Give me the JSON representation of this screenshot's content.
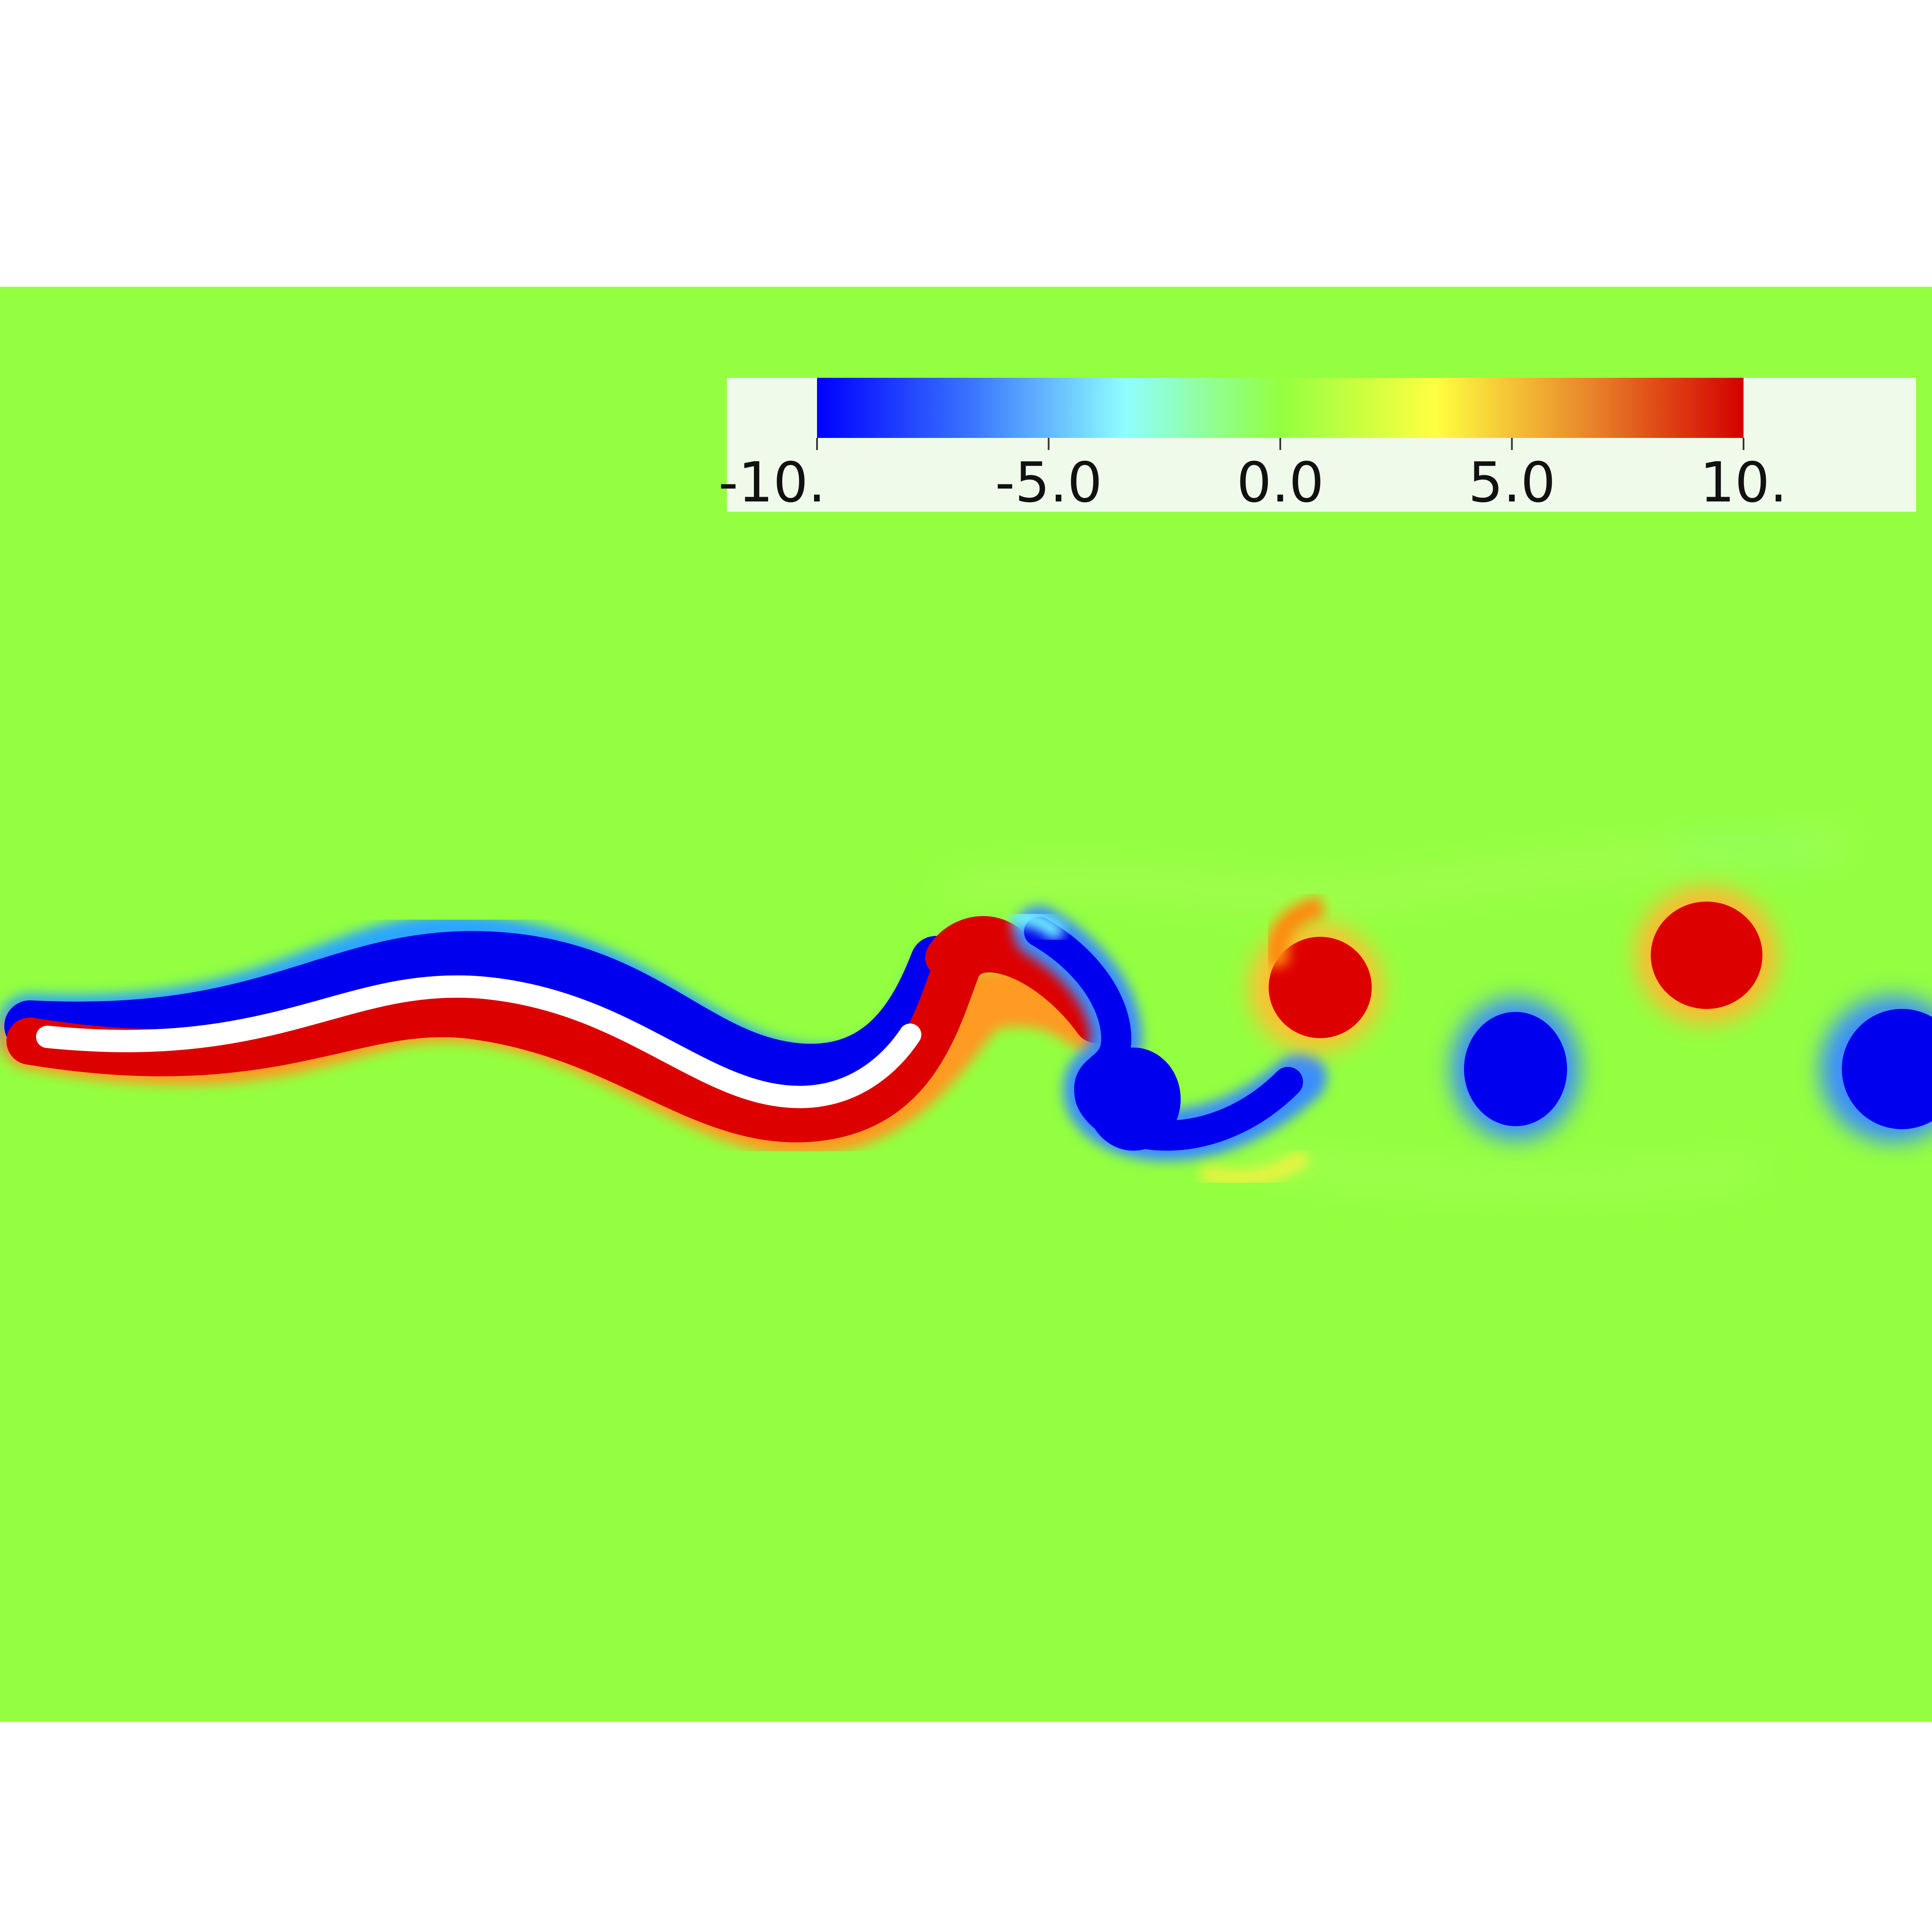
{
  "scene": {
    "background_color": "#93ff40",
    "positive_color": "#dd0000",
    "negative_color": "#0000ee",
    "body_color": "#ffffff"
  },
  "colorbar": {
    "min": -10,
    "max": 10,
    "stops": [
      "#0000ff",
      "#3a74ff",
      "#8ffefe",
      "#93ff40",
      "#ffff40",
      "#e8862a",
      "#d50000"
    ],
    "panel_color": "#effaea",
    "ticks": [
      {
        "value": -10,
        "label": "-10."
      },
      {
        "value": -5,
        "label": "-5.0"
      },
      {
        "value": 0,
        "label": "0.0"
      },
      {
        "value": 5,
        "label": "5.0"
      },
      {
        "value": 10,
        "label": "10."
      }
    ]
  }
}
